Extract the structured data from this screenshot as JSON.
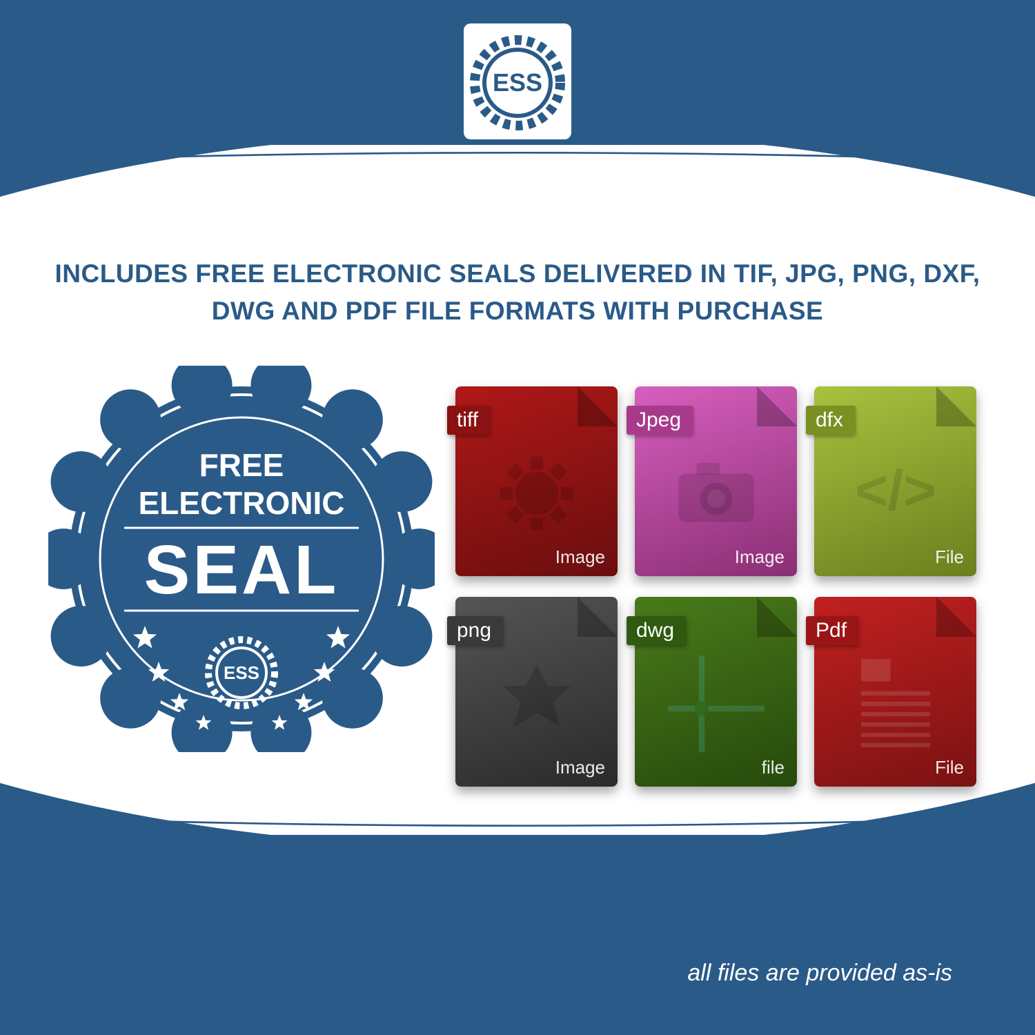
{
  "colors": {
    "brand_blue": "#2a5a88",
    "white": "#ffffff"
  },
  "logo": {
    "text": "ESS"
  },
  "headline": "INCLUDES FREE ELECTRONIC SEALS DELIVERED IN TIF, JPG, PNG, DXF, DWG AND PDF FILE FORMATS WITH PURCHASE",
  "seal": {
    "line1": "FREE",
    "line2": "ELECTRONIC",
    "line3": "SEAL",
    "badge_text": "ESS",
    "badge_color": "#2a5a88",
    "text_color": "#ffffff"
  },
  "files": [
    {
      "tag": "tiff",
      "footer": "Image",
      "bg_from": "#b01818",
      "bg_to": "#6a0e0e",
      "tag_bg": "#8a1212",
      "icon": "gear"
    },
    {
      "tag": "Jpeg",
      "footer": "Image",
      "bg_from": "#d85fbf",
      "bg_to": "#8a2f74",
      "tag_bg": "#a83a8c",
      "icon": "camera"
    },
    {
      "tag": "dfx",
      "footer": "File",
      "bg_from": "#a9c23f",
      "bg_to": "#6b7f1e",
      "tag_bg": "#7a9023",
      "icon": "code"
    },
    {
      "tag": "png",
      "footer": "Image",
      "bg_from": "#555555",
      "bg_to": "#2a2a2a",
      "tag_bg": "#3a3a3a",
      "icon": "burst"
    },
    {
      "tag": "dwg",
      "footer": "file",
      "bg_from": "#4a7a1a",
      "bg_to": "#264a0c",
      "tag_bg": "#2f5a10",
      "icon": "grid"
    },
    {
      "tag": "Pdf",
      "footer": "File",
      "bg_from": "#c22020",
      "bg_to": "#7a1212",
      "tag_bg": "#9a1616",
      "icon": "doc"
    }
  ],
  "disclaimer": "all files are provided as-is"
}
